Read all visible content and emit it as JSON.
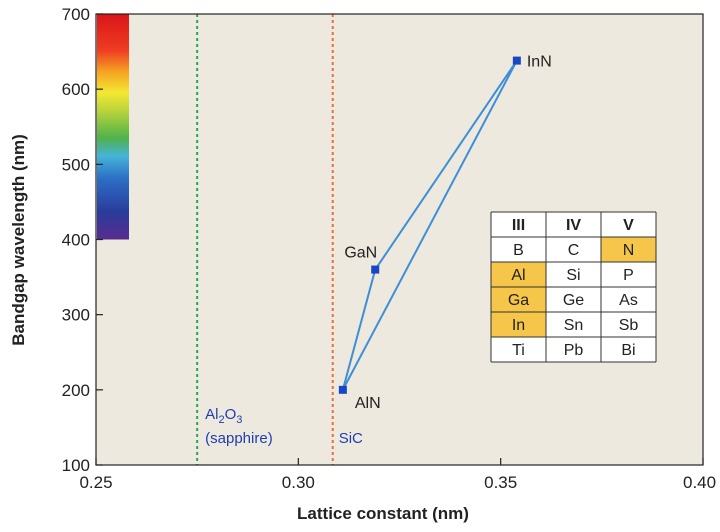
{
  "chart_data": {
    "type": "line",
    "xlabel": "Lattice constant (nm)",
    "ylabel": "Bandgap wavelength (nm)",
    "xlim": [
      0.25,
      0.4
    ],
    "ylim": [
      100,
      700
    ],
    "x_ticks": [
      "0.25",
      "0.30",
      "0.35",
      "0.40"
    ],
    "y_ticks": [
      "100",
      "200",
      "300",
      "400",
      "500",
      "600",
      "700"
    ],
    "grid": false,
    "background": "#ede9df",
    "line_color": "#3d8fd6",
    "marker_color": "#1747c4",
    "points": [
      {
        "name": "InN",
        "x": 0.354,
        "y": 638
      },
      {
        "name": "GaN",
        "x": 0.319,
        "y": 360
      },
      {
        "name": "AlN",
        "x": 0.311,
        "y": 200
      }
    ],
    "line_order": [
      "InN",
      "GaN",
      "AlN",
      "InN"
    ],
    "reference_lines": [
      {
        "x": 0.275,
        "label_main": "Al",
        "label_sub1": "2",
        "label_mid": "O",
        "label_sub2": "3",
        "label_line2": "(sapphire)",
        "color": "#22aa55"
      },
      {
        "x": 0.3085,
        "label_main": "SiC",
        "color": "#e8703a"
      }
    ],
    "spectrum_bar": {
      "y_from": 400,
      "y_to": 700
    },
    "periodic_table": {
      "headers": [
        "III",
        "IV",
        "V"
      ],
      "rows": [
        [
          "B",
          "C",
          "N"
        ],
        [
          "Al",
          "Si",
          "P"
        ],
        [
          "Ga",
          "Ge",
          "As"
        ],
        [
          "In",
          "Sn",
          "Sb"
        ],
        [
          "Ti",
          "Pb",
          "Bi"
        ]
      ],
      "highlight": [
        [
          0,
          2
        ],
        [
          1,
          0
        ],
        [
          2,
          0
        ],
        [
          3,
          0
        ]
      ],
      "highlight_color": "#f6c64a"
    }
  }
}
